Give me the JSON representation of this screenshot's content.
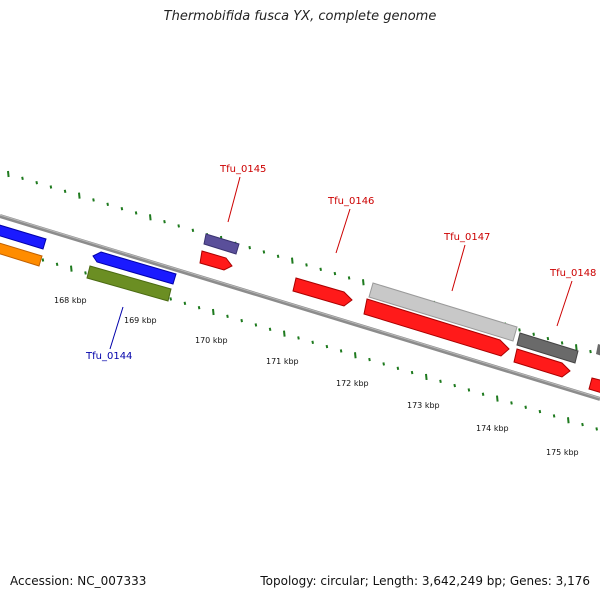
{
  "title": "Thermobifida fusca YX, complete genome",
  "footer": {
    "accession": "Accession: NC_007333",
    "summary": "Topology: circular; Length: 3,642,249 bp; Genes: 3,176"
  },
  "scale": {
    "unit": "kbp",
    "ticks": [
      "168 kbp",
      "169 kbp",
      "170 kbp",
      "171 kbp",
      "172 kbp",
      "173 kbp",
      "174 kbp",
      "175 kbp"
    ]
  },
  "colors": {
    "backbone": "#7a7a7a",
    "tick": "#1e7a1e",
    "label_red": "#cc0000",
    "label_blue": "#0000aa"
  },
  "gene_labels": [
    {
      "name": "Tfu_0144",
      "color": "#0000aa"
    },
    {
      "name": "Tfu_0145",
      "color": "#cc0000"
    },
    {
      "name": "Tfu_0146",
      "color": "#cc0000"
    },
    {
      "name": "Tfu_0147",
      "color": "#cc0000"
    },
    {
      "name": "Tfu_0148",
      "color": "#cc0000"
    }
  ]
}
